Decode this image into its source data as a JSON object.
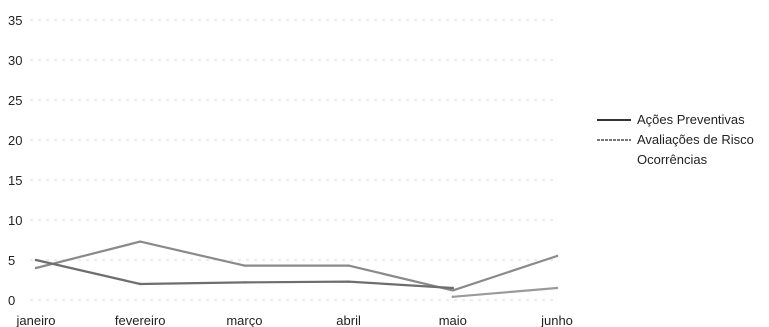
{
  "chart_data": {
    "type": "line",
    "title": "",
    "xlabel": "",
    "ylabel": "",
    "categories": [
      "janeiro",
      "fevereiro",
      "março",
      "abril",
      "maio",
      "junho"
    ],
    "ylim": [
      0,
      35
    ],
    "yticks": [
      0,
      5,
      10,
      15,
      20,
      25,
      30,
      35
    ],
    "grid": false,
    "legend_position": "right",
    "series": [
      {
        "name": "Ações Preventivas",
        "values": [
          4.0,
          7.3,
          4.3,
          4.3,
          1.2,
          5.5
        ],
        "color": "#8a8a8a"
      },
      {
        "name": "Avaliações de Risco",
        "values": [
          5.0,
          2.0,
          2.2,
          2.3,
          1.5,
          null
        ],
        "color": "#6e6e6e"
      },
      {
        "name": "Ocorrências",
        "values": [
          null,
          null,
          null,
          null,
          0.4,
          1.5
        ],
        "color": "#9a9a9a"
      }
    ]
  }
}
